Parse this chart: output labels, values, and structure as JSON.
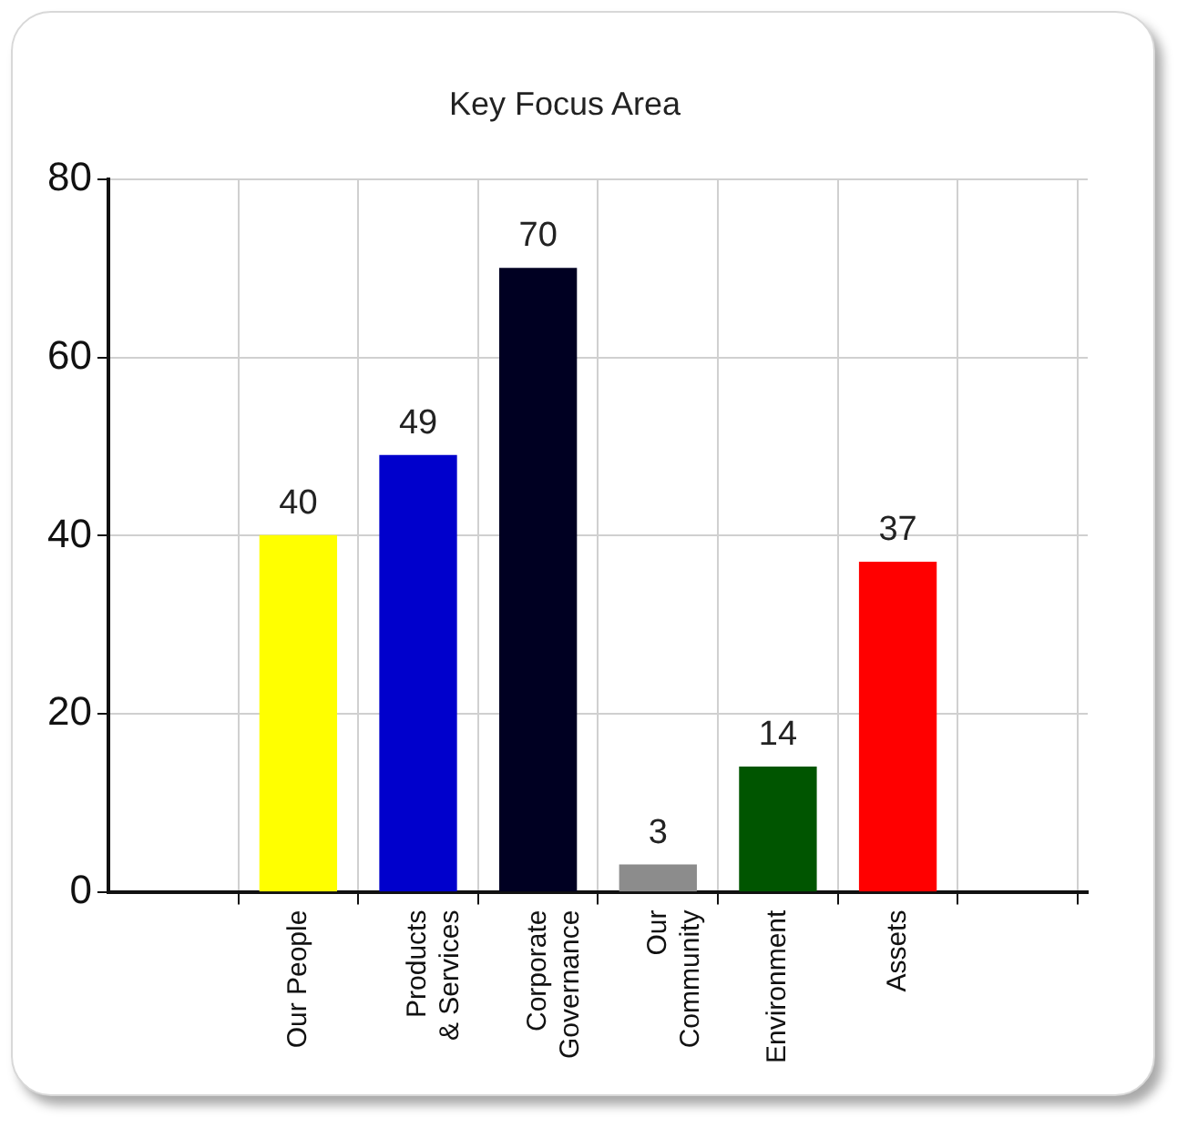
{
  "chart_data": {
    "type": "bar",
    "title": "Key Focus Area",
    "categories": [
      "Our People",
      "Products\n& Services",
      "Corporate\nGovernance",
      "Our\nCommunity",
      "Environment",
      "Assets"
    ],
    "values": [
      40,
      49,
      70,
      3,
      14,
      37
    ],
    "colors": [
      "#ffff00",
      "#0000cc",
      "#000022",
      "#8c8c8c",
      "#005500",
      "#ff0000"
    ],
    "ylim": [
      0,
      80
    ],
    "yticks": [
      0,
      20,
      40,
      60,
      80
    ],
    "grid": true,
    "data_labels": true,
    "legend": false
  }
}
